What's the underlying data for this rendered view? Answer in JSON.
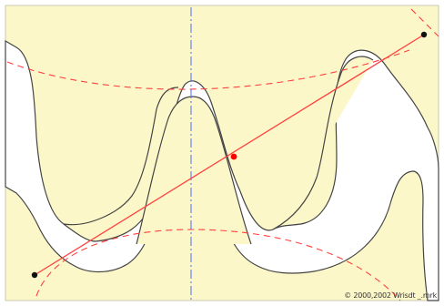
{
  "figure": {
    "credit": "© 2000,2002 Wrisdt _.mrk"
  },
  "colors": {
    "background": "#fcf7c8",
    "gear_fill": "#ffffff",
    "outline": "#444444",
    "construction_line": "#ff4040",
    "center_line": "#4a6cff",
    "contact_point": "#ff0000",
    "end_points": "#111111"
  }
}
